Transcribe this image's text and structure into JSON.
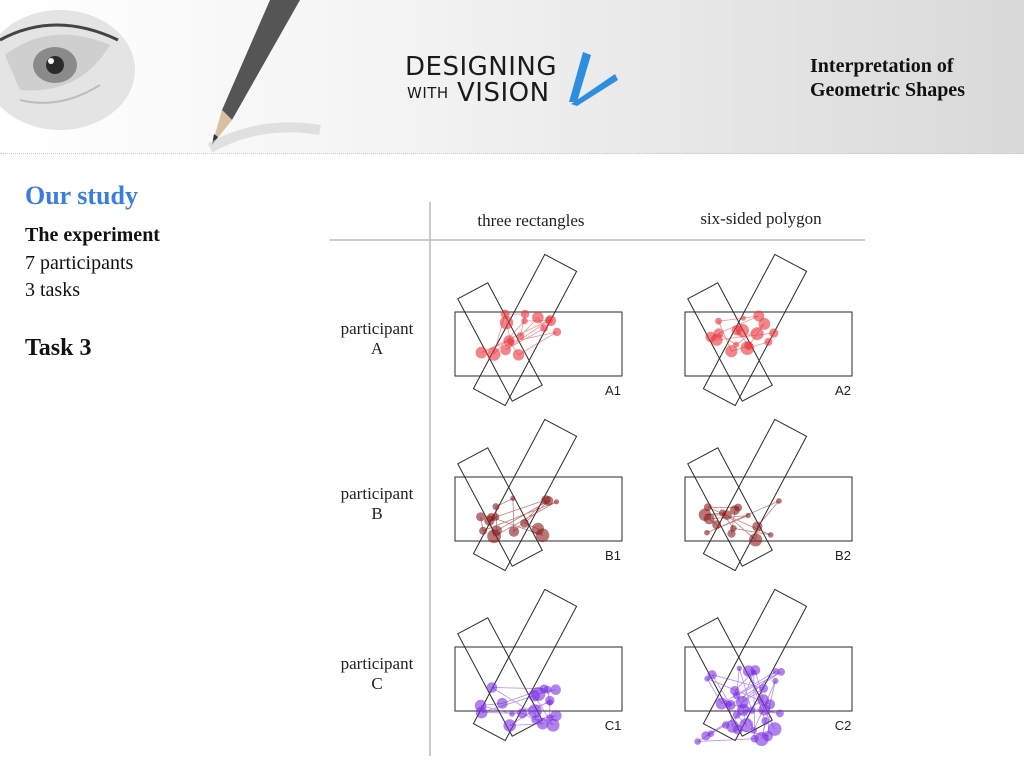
{
  "header": {
    "logo_line1": "DESIGNING",
    "logo_line2a": "WITH",
    "logo_line2b": "VISION",
    "deck_title_line1": "Interpretation of",
    "deck_title_line2": "Geometric Shapes"
  },
  "content": {
    "section_heading": "Our study",
    "subheading": "The experiment",
    "lines": [
      "7 participants",
      "3 tasks"
    ],
    "task_heading": "Task 3"
  },
  "figure": {
    "columns": [
      "three rectangles",
      "six-sided polygon"
    ],
    "rows": [
      {
        "label_top": "participant",
        "label_bottom": "A",
        "panels": [
          "A1",
          "A2"
        ]
      },
      {
        "label_top": "participant",
        "label_bottom": "B",
        "panels": [
          "B1",
          "B2"
        ]
      },
      {
        "label_top": "participant",
        "label_bottom": "C",
        "panels": [
          "C1",
          "C2"
        ]
      }
    ]
  },
  "colors": {
    "participant_a": "#e8343a",
    "participant_b": "#8b1a1a",
    "participant_c": "#7a2ee0",
    "heading_blue": "#3a7de0",
    "logo_blue": "#2d8ee0"
  }
}
